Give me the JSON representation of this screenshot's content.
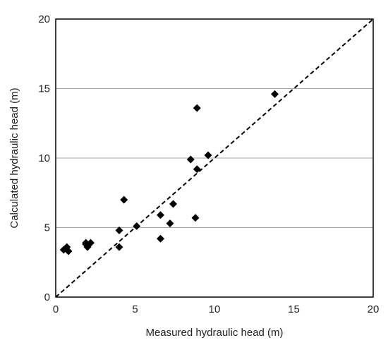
{
  "chart_data": {
    "type": "scatter",
    "xlabel": "Measured hydraulic head (m)",
    "ylabel": "Calculated hydraulic head (m)",
    "xlim": [
      0,
      20
    ],
    "ylim": [
      0,
      20
    ],
    "x_ticks": [
      0,
      5,
      10,
      15,
      20
    ],
    "y_ticks": [
      0,
      5,
      10,
      15,
      20
    ],
    "grid": "horizontal",
    "reference_line": {
      "style": "dashed",
      "from": [
        0,
        0
      ],
      "to": [
        20,
        20
      ]
    },
    "series": [
      {
        "marker": "diamond",
        "color": "#000000",
        "points": [
          {
            "x": 0.5,
            "y": 3.4
          },
          {
            "x": 0.7,
            "y": 3.6
          },
          {
            "x": 0.8,
            "y": 3.3
          },
          {
            "x": 1.9,
            "y": 3.8
          },
          {
            "x": 1.9,
            "y": 3.9
          },
          {
            "x": 2.0,
            "y": 3.6
          },
          {
            "x": 2.2,
            "y": 3.9
          },
          {
            "x": 4.0,
            "y": 3.6
          },
          {
            "x": 4.0,
            "y": 4.8
          },
          {
            "x": 4.3,
            "y": 7.0
          },
          {
            "x": 5.1,
            "y": 5.1
          },
          {
            "x": 6.6,
            "y": 4.2
          },
          {
            "x": 6.6,
            "y": 5.9
          },
          {
            "x": 7.2,
            "y": 5.3
          },
          {
            "x": 7.4,
            "y": 6.7
          },
          {
            "x": 8.5,
            "y": 9.9
          },
          {
            "x": 8.8,
            "y": 5.7
          },
          {
            "x": 8.9,
            "y": 9.2
          },
          {
            "x": 8.9,
            "y": 13.6
          },
          {
            "x": 9.6,
            "y": 10.2
          },
          {
            "x": 13.8,
            "y": 14.6
          }
        ]
      }
    ]
  },
  "colors": {
    "marker": "#000000",
    "gridline": "#a6a6a6",
    "frame": "#000000",
    "reference_line": "#000000"
  }
}
